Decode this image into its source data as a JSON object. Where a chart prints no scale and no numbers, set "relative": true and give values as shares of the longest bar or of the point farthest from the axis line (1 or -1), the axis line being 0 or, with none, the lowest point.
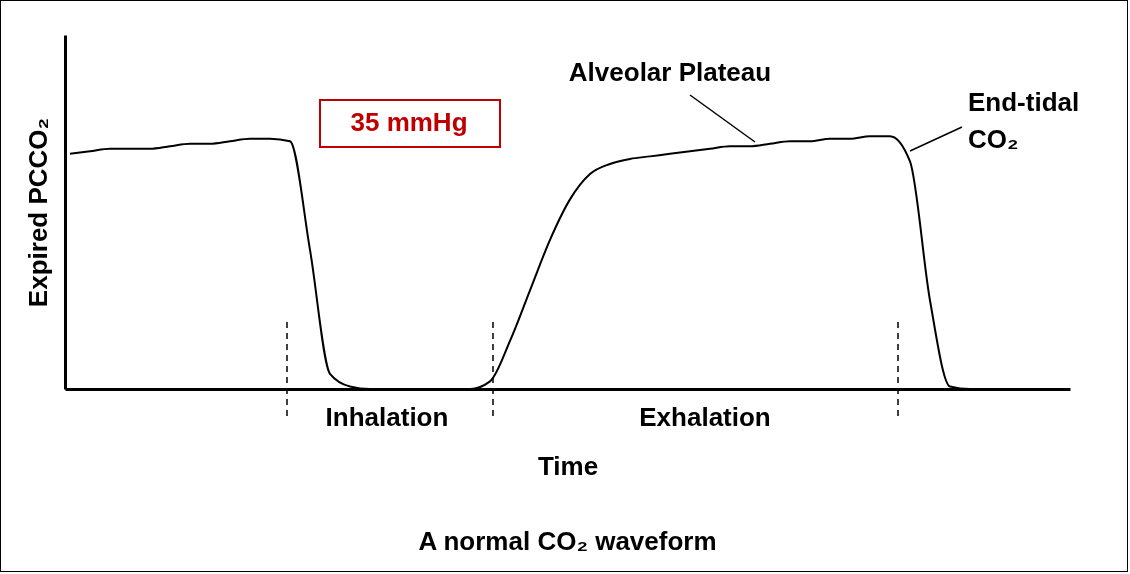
{
  "chart_data": {
    "type": "line",
    "title": "A normal CO₂ waveform",
    "xlabel": "Time",
    "ylabel": "Expired PCCO₂",
    "relative": true,
    "categories": [
      null,
      null,
      null,
      null,
      null,
      null,
      null,
      null,
      null,
      null,
      null,
      null,
      null,
      null,
      null,
      null,
      null,
      null,
      null,
      null,
      null,
      null,
      null,
      null,
      null,
      null,
      null,
      null,
      null,
      null,
      null,
      null,
      null,
      null,
      null,
      null,
      null,
      null,
      null,
      null,
      null,
      null,
      null,
      null,
      null,
      null,
      null,
      null,
      null,
      null,
      null
    ],
    "series": [
      {
        "color": "#000000",
        "values": [
          0.93,
          0.94,
          0.95,
          0.95,
          0.95,
          0.96,
          0.97,
          0.97,
          0.98,
          0.99,
          0.99,
          0.98,
          0.55,
          0.06,
          0.01,
          0,
          0,
          0,
          0,
          0,
          0,
          0.03,
          0.19,
          0.39,
          0.59,
          0.75,
          0.85,
          0.89,
          0.91,
          0.92,
          0.93,
          0.94,
          0.95,
          0.96,
          0.96,
          0.97,
          0.98,
          0.98,
          0.99,
          0.99,
          1,
          1,
          0.9,
          0.35,
          0.01,
          0,
          0,
          0,
          0,
          0,
          0
        ]
      }
    ],
    "annotations": [
      "35 mmHg",
      "Alveolar Plateau",
      "End-tidal CO₂",
      "Inhalation",
      "Exhalation"
    ]
  }
}
